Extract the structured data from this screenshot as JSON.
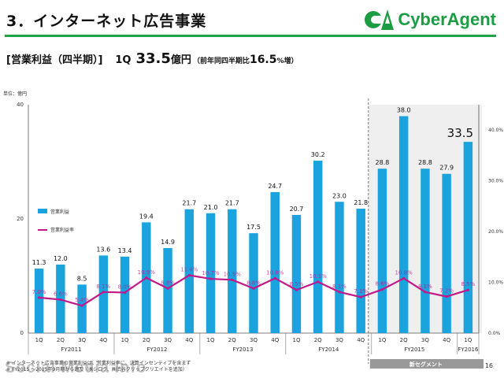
{
  "header": {
    "title": "3．インターネット広告事業",
    "brand": "CyberAgent",
    "brand_mark": "CA",
    "brand_color": "#1c9d43",
    "rule_color": "#22a34a"
  },
  "subtitle": {
    "bracket": "[営業利益（四半期）]",
    "quarter": "1Q",
    "value": "33.5",
    "unit": "億円",
    "compare_prefix": "（前年同四半期比",
    "compare_value": "16.5",
    "compare_suffix": "%増）"
  },
  "chart_data": {
    "type": "bar",
    "unit_label": "単位：億円",
    "ylim": [
      0,
      40
    ],
    "y_ticks": [
      "0",
      "20",
      "40"
    ],
    "y2lim": [
      0,
      0.45
    ],
    "y2_ticks": [
      "0.0%",
      "10.0%",
      "20.0%",
      "30.0%",
      "40.0%"
    ],
    "categories": [
      "1Q",
      "2Q",
      "3Q",
      "4Q",
      "1Q",
      "2Q",
      "3Q",
      "4Q",
      "1Q",
      "2Q",
      "3Q",
      "4Q",
      "1Q",
      "2Q",
      "3Q",
      "4Q",
      "1Q",
      "2Q",
      "3Q",
      "4Q",
      "1Q"
    ],
    "fiscal_years": [
      {
        "label": "FY2011",
        "start": 0,
        "end": 3
      },
      {
        "label": "FY2012",
        "start": 4,
        "end": 7
      },
      {
        "label": "FY2013",
        "start": 8,
        "end": 11
      },
      {
        "label": "FY2014",
        "start": 12,
        "end": 15
      },
      {
        "label": "FY2015",
        "start": 16,
        "end": 19
      },
      {
        "label": "FY2016",
        "start": 20,
        "end": 20
      }
    ],
    "series": [
      {
        "name": "営業利益",
        "type": "bar",
        "color": "#1aa3dc",
        "values": [
          11.3,
          12.0,
          8.5,
          13.6,
          13.4,
          19.4,
          14.9,
          21.7,
          21.0,
          21.7,
          17.5,
          24.7,
          20.7,
          30.2,
          23.0,
          21.8,
          28.8,
          38.0,
          28.8,
          27.9,
          33.5
        ],
        "labels": [
          "11.3",
          "12.0",
          "8.5",
          "13.6",
          "13.4",
          "19.4",
          "14.9",
          "21.7",
          "21.0",
          "21.7",
          "17.5",
          "24.7",
          "20.7",
          "30.2",
          "23.0",
          "21.8",
          "28.8",
          "38.0",
          "28.8",
          "27.9",
          "33.5"
        ]
      },
      {
        "name": "営業利益率",
        "type": "line",
        "color": "#c2188a",
        "values": [
          7.0,
          6.6,
          5.4,
          8.1,
          8.0,
          10.9,
          8.8,
          11.4,
          10.7,
          10.5,
          8.8,
          10.8,
          8.5,
          10.1,
          8.1,
          7.1,
          8.6,
          10.8,
          8.1,
          7.2,
          8.5
        ],
        "labels": [
          "7.0%",
          "6.6%",
          "5.4%",
          "8.1%",
          "8.0%",
          "10.9%",
          "8.8%",
          "11.4%",
          "10.7%",
          "10.5%",
          "8.8%",
          "10.8%",
          "8.5%",
          "10.1%",
          "8.1%",
          "7.1%",
          "8.6%",
          "10.8%",
          "8.1%",
          "7.2%",
          "8.5%"
        ]
      }
    ],
    "legend_position": "left-middle",
    "new_segment_label": "新セグメント",
    "new_segment_start": 16,
    "grid": false
  },
  "footer": {
    "note_1": "※ インターネット広告事業の営業利益は、営業利益率に、決算インセンティブを含まず",
    "note_2": "※ FY2015 ～2015年9月期から遡及（㈱シロク、㈱渋谷クリップクリエイトを追加）",
    "watermark": "Social Media Info",
    "page_number": "16"
  }
}
